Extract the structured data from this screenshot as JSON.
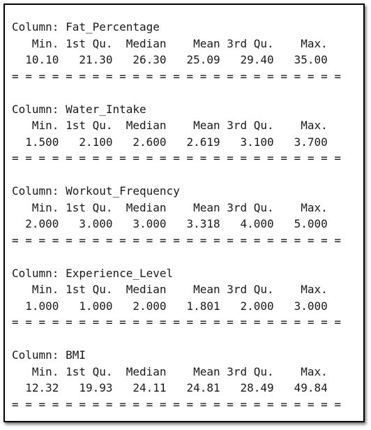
{
  "blocks": [
    {
      "column_line": "Column: Fat_Percentage",
      "header_line": "   Min. 1st Qu.  Median    Mean 3rd Qu.    Max. ",
      "values_line": "  10.10   21.30   26.30   25.09   29.40   35.00 ",
      "separator": "= = = = = = = = = = = = = = = = = = = = = = = = ="
    },
    {
      "column_line": "Column: Water_Intake",
      "header_line": "   Min. 1st Qu.  Median    Mean 3rd Qu.    Max. ",
      "values_line": "  1.500   2.100   2.600   2.619   3.100   3.700 ",
      "separator": "= = = = = = = = = = = = = = = = = = = = = = = = ="
    },
    {
      "column_line": "Column: Workout_Frequency",
      "header_line": "   Min. 1st Qu.  Median    Mean 3rd Qu.    Max. ",
      "values_line": "  2.000   3.000   3.000   3.318   4.000   5.000 ",
      "separator": "= = = = = = = = = = = = = = = = = = = = = = = = ="
    },
    {
      "column_line": "Column: Experience_Level",
      "header_line": "   Min. 1st Qu.  Median    Mean 3rd Qu.    Max. ",
      "values_line": "  1.000   1.000   2.000   1.801   2.000   3.000 ",
      "separator": "= = = = = = = = = = = = = = = = = = = = = = = = ="
    },
    {
      "column_line": "Column: BMI",
      "header_line": "   Min. 1st Qu.  Median    Mean 3rd Qu.    Max. ",
      "values_line": "  12.32   19.93   24.11   24.81   28.49   49.84 ",
      "separator": "= = = = = = = = = = = = = = = = = = = = = = = = ="
    }
  ]
}
